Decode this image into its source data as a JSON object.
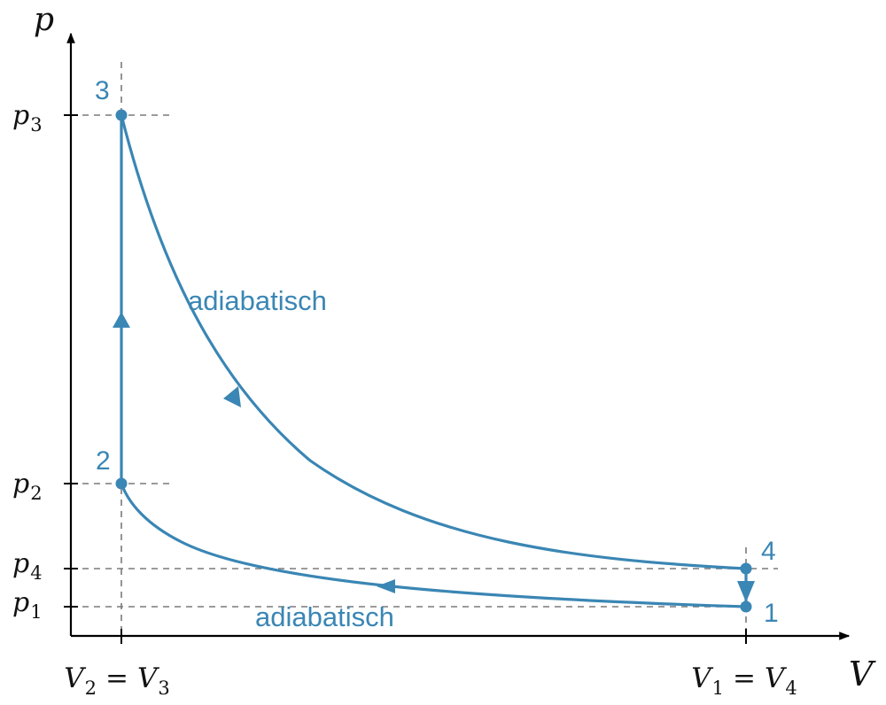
{
  "axes": {
    "y_symbol": "p",
    "x_symbol": "V"
  },
  "y_ticks": [
    {
      "symbol": "p",
      "sub": "3"
    },
    {
      "symbol": "p",
      "sub": "2"
    },
    {
      "symbol": "p",
      "sub": "4"
    },
    {
      "symbol": "p",
      "sub": "1"
    }
  ],
  "x_ticks": [
    {
      "a": "V",
      "a_sub": "2",
      "rel": "=",
      "b": "V",
      "b_sub": "3"
    },
    {
      "a": "V",
      "a_sub": "1",
      "rel": "=",
      "b": "V",
      "b_sub": "4"
    }
  ],
  "points": [
    {
      "label": "1"
    },
    {
      "label": "2"
    },
    {
      "label": "3"
    },
    {
      "label": "4"
    }
  ],
  "processes": [
    {
      "label": "adiabatisch"
    },
    {
      "label": "adiabatisch"
    }
  ],
  "colors": {
    "cycle": "#3a86b4",
    "axis": "#000000",
    "guide": "#7a7a7a"
  }
}
